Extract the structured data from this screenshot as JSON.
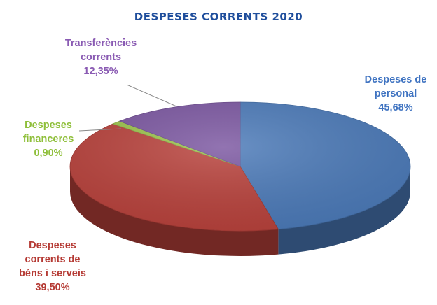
{
  "chart_data": {
    "type": "pie",
    "title": "DESPESES CORRENTS 2020",
    "slices": [
      {
        "label": [
          "Despeses de",
          "personal"
        ],
        "value_label": "45,68%",
        "value": 45.68,
        "color": "#4a79b8"
      },
      {
        "label": [
          "Despeses",
          "corrents de",
          "béns i serveis"
        ],
        "value_label": "39,50%",
        "value": 39.5,
        "color": "#b8403a"
      },
      {
        "label": [
          "Despeses",
          "financeres"
        ],
        "value_label": "0,90%",
        "value": 0.9,
        "color": "#9bc34a"
      },
      {
        "label": [
          "Transferències",
          "corrents"
        ],
        "value_label": "12,35%",
        "value": 12.35,
        "color": "#7a55a0"
      }
    ],
    "style": "3d",
    "legend": "none"
  }
}
